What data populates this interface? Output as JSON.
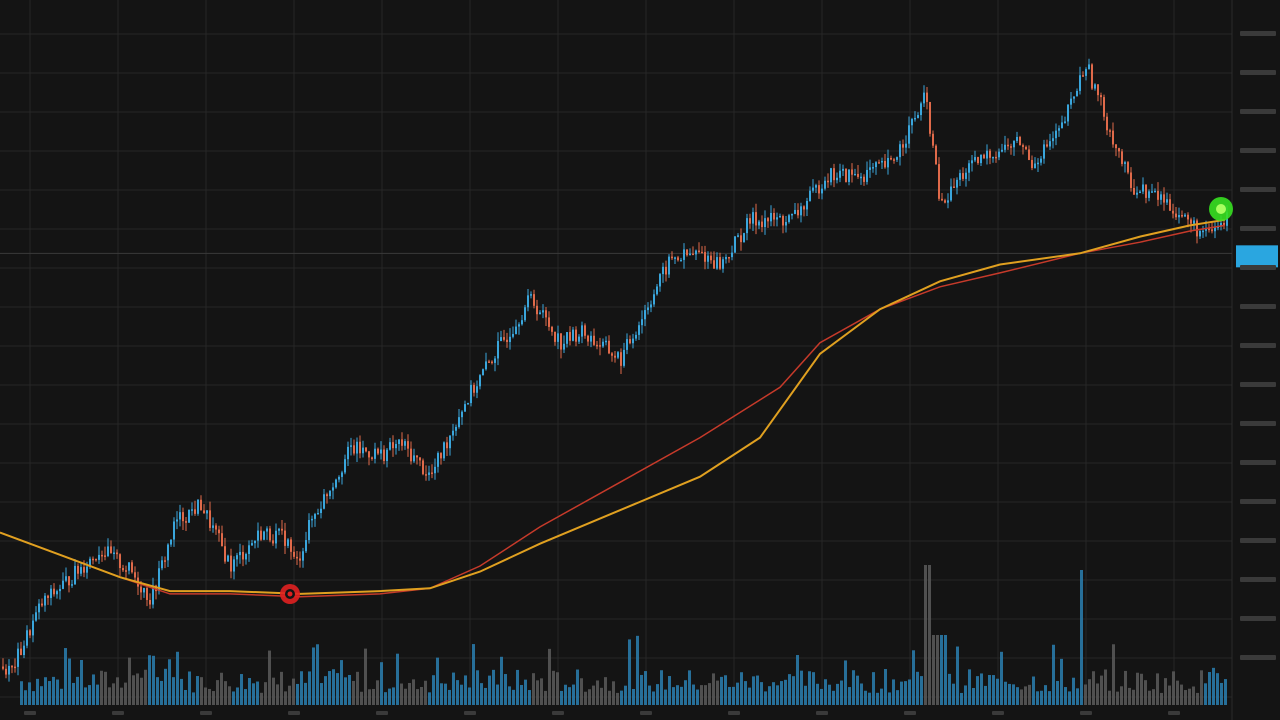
{
  "chart_data": {
    "type": "candlestick",
    "title": "",
    "legend_text": "",
    "colors": {
      "background": "#141414",
      "grid": "#262626",
      "up": "#3aa6dc",
      "down": "#e06a4a",
      "ma_fast": "#c63a2a",
      "ma_slow": "#e0a020",
      "crosshair": "#3a3a3a",
      "price_tag": "#2aa6e0",
      "marker_sell": "#e02020",
      "marker_buy": "#36e020",
      "volume_up": "#2a7fb0",
      "volume_down": "#5a5a5a"
    },
    "grid": true,
    "y_range": [
      0,
      100
    ],
    "crosshair_level": 80,
    "last_value": 75,
    "anchors": [
      [
        0,
        6
      ],
      [
        10,
        5
      ],
      [
        40,
        17
      ],
      [
        70,
        22
      ],
      [
        100,
        27
      ],
      [
        130,
        23
      ],
      [
        150,
        18
      ],
      [
        175,
        32
      ],
      [
        200,
        35
      ],
      [
        230,
        24
      ],
      [
        260,
        30
      ],
      [
        285,
        29
      ],
      [
        295,
        24
      ],
      [
        310,
        32
      ],
      [
        350,
        45
      ],
      [
        380,
        44
      ],
      [
        400,
        46
      ],
      [
        430,
        40
      ],
      [
        460,
        52
      ],
      [
        490,
        61
      ],
      [
        530,
        72
      ],
      [
        560,
        64
      ],
      [
        580,
        66
      ],
      [
        620,
        61
      ],
      [
        650,
        72
      ],
      [
        670,
        79
      ],
      [
        700,
        80
      ],
      [
        720,
        78
      ],
      [
        750,
        86
      ],
      [
        790,
        86
      ],
      [
        810,
        90
      ],
      [
        825,
        94
      ],
      [
        860,
        94
      ],
      [
        890,
        96
      ],
      [
        925,
        108
      ],
      [
        940,
        88
      ],
      [
        960,
        94
      ],
      [
        990,
        98
      ],
      [
        1020,
        100
      ],
      [
        1030,
        96
      ],
      [
        1060,
        102
      ],
      [
        1085,
        114
      ],
      [
        1105,
        104
      ],
      [
        1130,
        92
      ],
      [
        1160,
        90
      ],
      [
        1185,
        86
      ],
      [
        1205,
        83
      ],
      [
        1225,
        86
      ]
    ],
    "ma_fast": [
      [
        0,
        30
      ],
      [
        60,
        26
      ],
      [
        120,
        22
      ],
      [
        170,
        19
      ],
      [
        230,
        19
      ],
      [
        300,
        18.5
      ],
      [
        380,
        19
      ],
      [
        430,
        20
      ],
      [
        480,
        24
      ],
      [
        540,
        31
      ],
      [
        620,
        39
      ],
      [
        700,
        47
      ],
      [
        780,
        56
      ],
      [
        820,
        64
      ],
      [
        880,
        70
      ],
      [
        940,
        74
      ],
      [
        1000,
        76.5
      ],
      [
        1080,
        80
      ],
      [
        1140,
        82
      ],
      [
        1190,
        84
      ],
      [
        1225,
        85
      ]
    ],
    "ma_slow": [
      [
        0,
        30
      ],
      [
        60,
        26
      ],
      [
        120,
        22
      ],
      [
        170,
        19.5
      ],
      [
        230,
        19.5
      ],
      [
        300,
        19
      ],
      [
        380,
        19.5
      ],
      [
        430,
        20
      ],
      [
        480,
        23
      ],
      [
        540,
        28
      ],
      [
        620,
        34
      ],
      [
        700,
        40
      ],
      [
        760,
        47
      ],
      [
        820,
        62
      ],
      [
        880,
        70
      ],
      [
        940,
        75
      ],
      [
        1000,
        78
      ],
      [
        1080,
        80
      ],
      [
        1140,
        83
      ],
      [
        1190,
        85
      ],
      [
        1225,
        86
      ]
    ],
    "markers": [
      {
        "type": "sell",
        "x_index": 290,
        "value": 13
      },
      {
        "type": "buy",
        "x_index": 1221,
        "value": 81
      }
    ],
    "x_tick_labels": [],
    "y_tick_labels": []
  }
}
